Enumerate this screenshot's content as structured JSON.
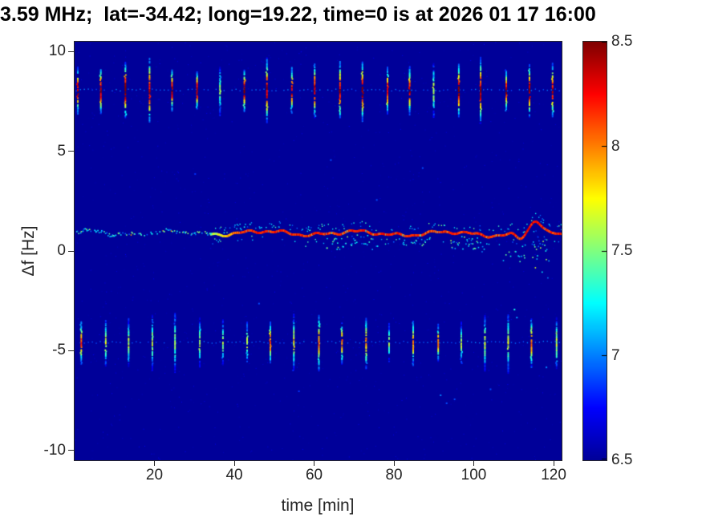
{
  "title": "3.59 MHz;  lat=-34.42; long=19.22, time=0 is at 2026 01 17 16:00",
  "chart_data": {
    "type": "heatmap",
    "title": "3.59 MHz;  lat=-34.42; long=19.22, time=0 is at 2026 01 17 16:00",
    "xlabel": "time [min]",
    "ylabel": "Δf [Hz]",
    "xlim": [
      0,
      122
    ],
    "ylim": [
      -10.5,
      10.5
    ],
    "xticks": [
      20,
      40,
      60,
      80,
      100,
      120
    ],
    "yticks": [
      10,
      5,
      0,
      -5,
      -10
    ],
    "grid": false,
    "colorbar": {
      "min": 6.5,
      "max": 8.5,
      "ticks": [
        8.5,
        8,
        7.5,
        7,
        6.5
      ],
      "position": "right"
    },
    "colormap": {
      "name": "jet",
      "stops": [
        [
          0,
          "#000099"
        ],
        [
          0.125,
          "#0000ff"
        ],
        [
          0.375,
          "#00ffff"
        ],
        [
          0.625,
          "#ffff00"
        ],
        [
          0.875,
          "#ff0000"
        ],
        [
          1,
          "#800000"
        ]
      ]
    },
    "background_value": 6.5,
    "seed": 7,
    "features": {
      "pulse_bands": [
        {
          "name": "upper-pulse-train",
          "center": 8.1,
          "halfspan": 1.5,
          "first": 0.8,
          "period": 5.95,
          "strong_prob": 0.75,
          "v_strong": 8.45,
          "v_weak": 7.55,
          "dot_value": 6.95,
          "dot_spacing": 1.0
        },
        {
          "name": "lower-pulse-train",
          "center": -4.55,
          "halfspan": 1.4,
          "first": 1.6,
          "period": 5.95,
          "strong_prob": 0.3,
          "v_strong": 8.05,
          "v_weak": 7.6,
          "dot_value": 6.95,
          "dot_spacing": 1.0
        }
      ],
      "carrier": {
        "base": 0.95,
        "drift": -0.0008,
        "wiggles": [
          0.09,
          0.06,
          0.04
        ],
        "periods": [
          23,
          9.5,
          4.1
        ],
        "solid_from": 34,
        "sparse_prob": 0.5,
        "v_main": 8.2,
        "bumps": [
          {
            "t": 111.5,
            "w": 1.4,
            "amp": -0.22
          },
          {
            "t": 115.3,
            "w": 1.7,
            "amp": 0.6
          }
        ],
        "echoes": [
          {
            "t0": 36,
            "t1": 50,
            "dy0": 0.15,
            "dy1": 0.45,
            "prob": 0.1,
            "v0": 6.9,
            "v1": 7.3
          },
          {
            "t0": 63,
            "t1": 76,
            "dy0": -0.75,
            "dy1": -0.15,
            "prob": 0.35,
            "v0": 6.9,
            "v1": 7.6
          },
          {
            "t0": 79,
            "t1": 89,
            "dy0": -0.5,
            "dy1": -0.1,
            "prob": 0.25,
            "v0": 6.9,
            "v1": 7.5
          },
          {
            "t0": 94,
            "t1": 104,
            "dy0": -0.95,
            "dy1": -0.2,
            "prob": 0.3,
            "v0": 6.9,
            "v1": 7.6
          },
          {
            "t0": 107,
            "t1": 113,
            "dy0": -1.3,
            "dy1": -0.3,
            "prob": 0.28,
            "v0": 6.9,
            "v1": 7.5
          },
          {
            "t0": 114.5,
            "t1": 119,
            "dy0": -2.4,
            "dy1": -0.2,
            "prob": 0.75,
            "v0": 6.9,
            "v1": 7.7
          }
        ]
      },
      "specks": [
        {
          "t": 91.5,
          "f": -7.2,
          "v": 7.0
        },
        {
          "t": 93,
          "f": -7.6,
          "v": 6.9
        },
        {
          "t": 95,
          "f": -7.4,
          "v": 6.9
        },
        {
          "t": 110,
          "f": -2.9,
          "v": 7.3
        },
        {
          "t": 110.6,
          "f": -3.3,
          "v": 7.05
        },
        {
          "t": 87,
          "f": 4.2,
          "v": 6.9
        },
        {
          "t": 64,
          "f": 4.6,
          "v": 6.9
        },
        {
          "t": 118,
          "f": -5.8,
          "v": 7.0
        },
        {
          "t": 104,
          "f": -6.9,
          "v": 6.9
        },
        {
          "t": 56,
          "f": -7.0,
          "v": 6.85
        },
        {
          "t": 30,
          "f": 3.9,
          "v": 6.85
        },
        {
          "t": 46,
          "f": -2.6,
          "v": 6.9
        },
        {
          "t": 75.5,
          "f": 2.6,
          "v": 6.9
        }
      ]
    }
  }
}
